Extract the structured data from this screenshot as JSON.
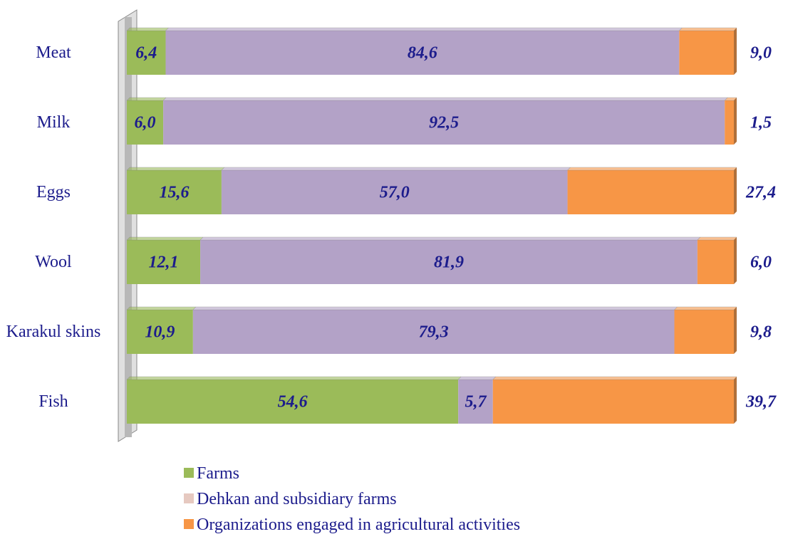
{
  "chart_data": {
    "type": "stacked-barh",
    "categories": [
      "Meat",
      "Milk",
      "Eggs",
      "Wool",
      "Karakul skins",
      "Fish"
    ],
    "xlim": [
      0,
      100
    ],
    "series": [
      {
        "name": "Farms",
        "color": "#9bbb59",
        "legend_color": "#9bbb59",
        "values": [
          6.4,
          6.0,
          15.6,
          12.1,
          10.9,
          54.6
        ],
        "value_labels": [
          "6,4",
          "6,0",
          "15,6",
          "12,1",
          "10,9",
          "54,6"
        ]
      },
      {
        "name": "Dehkan and subsidiary farms",
        "color": "#b3a2c7",
        "legend_color": "#e6c9c0",
        "values": [
          84.6,
          92.5,
          57.0,
          81.9,
          79.3,
          5.7
        ],
        "value_labels": [
          "84,6",
          "92,5",
          "57,0",
          "81,9",
          "79,3",
          "5,7"
        ]
      },
      {
        "name": "Organizations engaged in agricultural activities",
        "color": "#f79646",
        "legend_color": "#f79646",
        "values": [
          9.0,
          1.5,
          27.4,
          6.0,
          9.8,
          39.7
        ],
        "value_labels": [
          "9,0",
          "1,5",
          "27,4",
          "6,0",
          "9,8",
          "39,7"
        ]
      }
    ]
  }
}
